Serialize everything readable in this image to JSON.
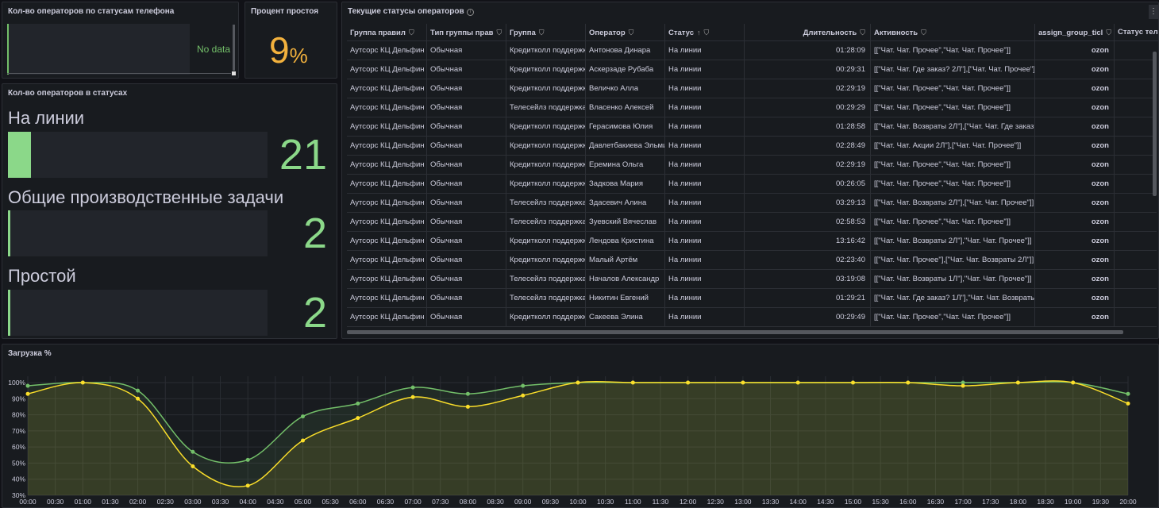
{
  "panel_phone": {
    "title": "Кол-во операторов по статусам телефона",
    "no_data": "No data"
  },
  "panel_idle": {
    "title": "Процент простоя",
    "value": "9",
    "unit": "%",
    "color": "#f2b13d"
  },
  "panel_statuses": {
    "title": "Кол-во операторов в статусах",
    "items": [
      {
        "label": "На линии",
        "value": "21",
        "fill": 0.09
      },
      {
        "label": "Общие производственные задачи",
        "value": "2",
        "fill": 0.01
      },
      {
        "label": "Простой",
        "value": "2",
        "fill": 0.01
      }
    ],
    "color": "#8bd889"
  },
  "panel_table": {
    "title": "Текущие статусы операторов",
    "info_icon": "info-icon",
    "menu_icon": "⋮",
    "columns": [
      "Группа правил",
      "Тип группы прав",
      "Группа",
      "Оператор",
      "Статус",
      "Длительность",
      "Активность",
      "assign_group_ticl",
      "Статус теле"
    ],
    "sort_indicator": "↑",
    "filter_icon": "filter-icon",
    "rows": [
      [
        "Аутсорс КЦ Дельфин",
        "Обычная",
        "Кредитколл поддержка",
        "Антонова Динара",
        "На линии",
        "01:28:09",
        "[[\"Чат. Чат. Прочее\",\"Чат. Чат. Прочее\"]]",
        "ozon",
        ""
      ],
      [
        "Аутсорс КЦ Дельфин",
        "Обычная",
        "Кредитколл поддержка",
        "Аскерзаде Рубаба",
        "На линии",
        "00:29:31",
        "[[\"Чат. Чат. Где заказ? 2Л\"],[\"Чат. Чат. Прочее\"]]",
        "ozon",
        ""
      ],
      [
        "Аутсорс КЦ Дельфин",
        "Обычная",
        "Кредитколл поддержка",
        "Величко Алла",
        "На линии",
        "02:29:19",
        "[[\"Чат. Чат. Прочее\",\"Чат. Чат. Прочее\"]]",
        "ozon",
        ""
      ],
      [
        "Аутсорс КЦ Дельфин",
        "Обычная",
        "Телесейлз поддержка",
        "Власенко Алексей",
        "На линии",
        "00:29:29",
        "[[\"Чат. Чат. Прочее\",\"Чат. Чат. Прочее\"]]",
        "ozon",
        ""
      ],
      [
        "Аутсорс КЦ Дельфин",
        "Обычная",
        "Кредитколл поддержка",
        "Герасимова Юлия",
        "На линии",
        "01:28:58",
        "[[\"Чат. Чат. Возвраты 2Л\"],[\"Чат. Чат. Где заказ?\"]]",
        "ozon",
        ""
      ],
      [
        "Аутсорс КЦ Дельфин",
        "Обычная",
        "Кредитколл поддержка",
        "Давлетбакиева Эльмира",
        "На линии",
        "02:28:49",
        "[[\"Чат. Чат. Акции 2Л\"],[\"Чат. Чат. Прочее\"]]",
        "ozon",
        ""
      ],
      [
        "Аутсорс КЦ Дельфин",
        "Обычная",
        "Кредитколл поддержка",
        "Еремина Ольга",
        "На линии",
        "02:29:19",
        "[[\"Чат. Чат. Прочее\",\"Чат. Чат. Прочее\"]]",
        "ozon",
        ""
      ],
      [
        "Аутсорс КЦ Дельфин",
        "Обычная",
        "Кредитколл поддержка",
        "Задкова Мария",
        "На линии",
        "00:26:05",
        "[[\"Чат. Чат. Прочее\",\"Чат. Чат. Прочее\"]]",
        "ozon",
        ""
      ],
      [
        "Аутсорс КЦ Дельфин",
        "Обычная",
        "Телесейлз поддержка",
        "Здасевич Алина",
        "На линии",
        "03:29:13",
        "[[\"Чат. Чат. Возвраты 2Л\"],[\"Чат. Чат. Прочее\"]]",
        "ozon",
        ""
      ],
      [
        "Аутсорс КЦ Дельфин",
        "Обычная",
        "Телесейлз поддержка",
        "Зуевский Вячеслав",
        "На линии",
        "02:58:53",
        "[[\"Чат. Чат. Прочее\",\"Чат. Чат. Прочее\"]]",
        "ozon",
        ""
      ],
      [
        "Аутсорс КЦ Дельфин",
        "Обычная",
        "Кредитколл поддержка",
        "Лендова Кристина",
        "На линии",
        "13:16:42",
        "[[\"Чат. Чат. Возвраты 2Л\"],\"Чат. Чат. Прочее\"]]",
        "ozon",
        ""
      ],
      [
        "Аутсорс КЦ Дельфин",
        "Обычная",
        "Кредитколл поддержка",
        "Малый Артём",
        "На линии",
        "02:23:40",
        "[[\"Чат. Чат. Прочее\"],[\"Чат. Чат. Возвраты 2Л\"]]",
        "ozon",
        ""
      ],
      [
        "Аутсорс КЦ Дельфин",
        "Обычная",
        "Телесейлз поддержка",
        "Началов Александр",
        "На линии",
        "03:19:08",
        "[[\"Чат. Чат. Возвраты 1Л\"],\"Чат. Чат. Прочее\"]]",
        "ozon",
        ""
      ],
      [
        "Аутсорс КЦ Дельфин",
        "Обычная",
        "Телесейлз поддержка",
        "Никитин Евгений",
        "На линии",
        "01:29:21",
        "[[\"Чат. Чат. Где заказ? 1Л\"],\"Чат. Чат. Возвраты\"]]",
        "ozon",
        ""
      ],
      [
        "Аутсорс КЦ Дельфин",
        "Обычная",
        "Кредитколл поддержка",
        "Сакеева Элина",
        "На линии",
        "00:29:49",
        "[[\"Чат. Чат. Прочее\",\"Чат. Чат. Прочее\"]]",
        "ozon",
        ""
      ]
    ]
  },
  "panel_load": {
    "title": "Загрузка %"
  },
  "chart_data": {
    "type": "line",
    "title": "Загрузка %",
    "x": [
      "00:00",
      "01:00",
      "02:00",
      "03:00",
      "04:00",
      "05:00",
      "06:00",
      "07:00",
      "08:00",
      "09:00",
      "10:00",
      "11:00",
      "12:00",
      "13:00",
      "14:00",
      "15:00",
      "16:00",
      "17:00",
      "18:00",
      "19:00",
      "20:00"
    ],
    "x_tick_labels": [
      "00:00",
      "00:30",
      "01:00",
      "01:30",
      "02:00",
      "02:30",
      "03:00",
      "03:30",
      "04:00",
      "04:30",
      "05:00",
      "05:30",
      "06:00",
      "06:30",
      "07:00",
      "07:30",
      "08:00",
      "08:30",
      "09:00",
      "09:30",
      "10:00",
      "10:30",
      "11:00",
      "11:30",
      "12:00",
      "12:30",
      "13:00",
      "13:30",
      "14:00",
      "14:30",
      "15:00",
      "15:30",
      "16:00",
      "16:30",
      "17:00",
      "17:30",
      "18:00",
      "18:30",
      "19:00",
      "19:30",
      "20:00"
    ],
    "y_tick_labels": [
      "30%",
      "40%",
      "50%",
      "60%",
      "70%",
      "80%",
      "90%",
      "100%"
    ],
    "ylim": [
      30,
      100
    ],
    "series": [
      {
        "color": "#73bf69",
        "values": [
          98,
          100,
          95,
          57,
          52,
          79,
          87,
          97,
          93,
          98,
          100,
          100,
          100,
          100,
          100,
          100,
          100,
          100,
          100,
          100,
          93
        ]
      },
      {
        "color": "#fade2a",
        "values": [
          93,
          100,
          90,
          48,
          36,
          64,
          78,
          91,
          85,
          92,
          100,
          100,
          100,
          100,
          100,
          100,
          100,
          98,
          100,
          100,
          87
        ]
      }
    ],
    "grid": true
  }
}
